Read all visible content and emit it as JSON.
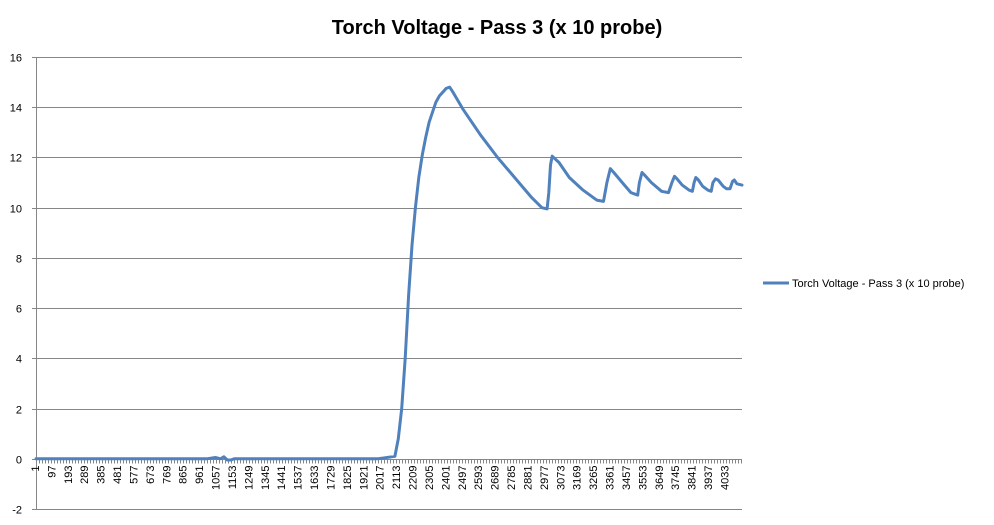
{
  "chart_data": {
    "type": "line",
    "title": "Torch Voltage - Pass 3 (x 10 probe)",
    "xlabel": "",
    "ylabel": "",
    "ylim": [
      -2,
      16
    ],
    "yticks": [
      -2,
      0,
      2,
      4,
      6,
      8,
      10,
      12,
      14,
      16
    ],
    "xlim": [
      1,
      4130
    ],
    "xticks": [
      1,
      97,
      193,
      289,
      385,
      481,
      577,
      673,
      769,
      865,
      961,
      1057,
      1153,
      1249,
      1345,
      1441,
      1537,
      1633,
      1729,
      1825,
      1921,
      2017,
      2113,
      2209,
      2305,
      2401,
      2497,
      2593,
      2689,
      2785,
      2881,
      2977,
      3073,
      3169,
      3265,
      3361,
      3457,
      3553,
      3649,
      3745,
      3841,
      3937,
      4033
    ],
    "grid": true,
    "legend_position": "right",
    "color": "#4f81bd",
    "series": [
      {
        "name": "Torch Voltage - Pass 3 (x 10 probe)",
        "x": [
          1,
          1000,
          1050,
          1080,
          1100,
          1120,
          1140,
          1160,
          1250,
          2000,
          2100,
          2120,
          2140,
          2160,
          2180,
          2200,
          2220,
          2240,
          2260,
          2280,
          2300,
          2320,
          2340,
          2360,
          2380,
          2400,
          2420,
          2440,
          2500,
          2600,
          2700,
          2800,
          2900,
          2960,
          2990,
          3000,
          3010,
          3020,
          3060,
          3120,
          3200,
          3280,
          3320,
          3340,
          3360,
          3380,
          3430,
          3480,
          3520,
          3530,
          3545,
          3560,
          3600,
          3660,
          3700,
          3720,
          3735,
          3750,
          3780,
          3820,
          3840,
          3850,
          3860,
          3875,
          3900,
          3930,
          3950,
          3960,
          3975,
          3990,
          4020,
          4040,
          4060,
          4075,
          4085,
          4100,
          4130
        ],
        "y": [
          0,
          0,
          0.05,
          0,
          0.08,
          -0.05,
          -0.05,
          0,
          0,
          0,
          0.1,
          0.8,
          2.0,
          4.0,
          6.5,
          8.5,
          10.0,
          11.2,
          12.1,
          12.8,
          13.4,
          13.8,
          14.2,
          14.45,
          14.6,
          14.75,
          14.8,
          14.6,
          13.9,
          12.9,
          12.0,
          11.2,
          10.4,
          10.0,
          9.95,
          10.6,
          11.7,
          12.05,
          11.8,
          11.2,
          10.7,
          10.3,
          10.25,
          11.0,
          11.55,
          11.4,
          11.0,
          10.6,
          10.5,
          11.0,
          11.4,
          11.3,
          11.0,
          10.65,
          10.6,
          11.0,
          11.25,
          11.15,
          10.9,
          10.7,
          10.65,
          11.0,
          11.2,
          11.1,
          10.85,
          10.7,
          10.65,
          11.0,
          11.15,
          11.1,
          10.85,
          10.75,
          10.75,
          11.05,
          11.1,
          10.95,
          10.9
        ]
      }
    ]
  }
}
